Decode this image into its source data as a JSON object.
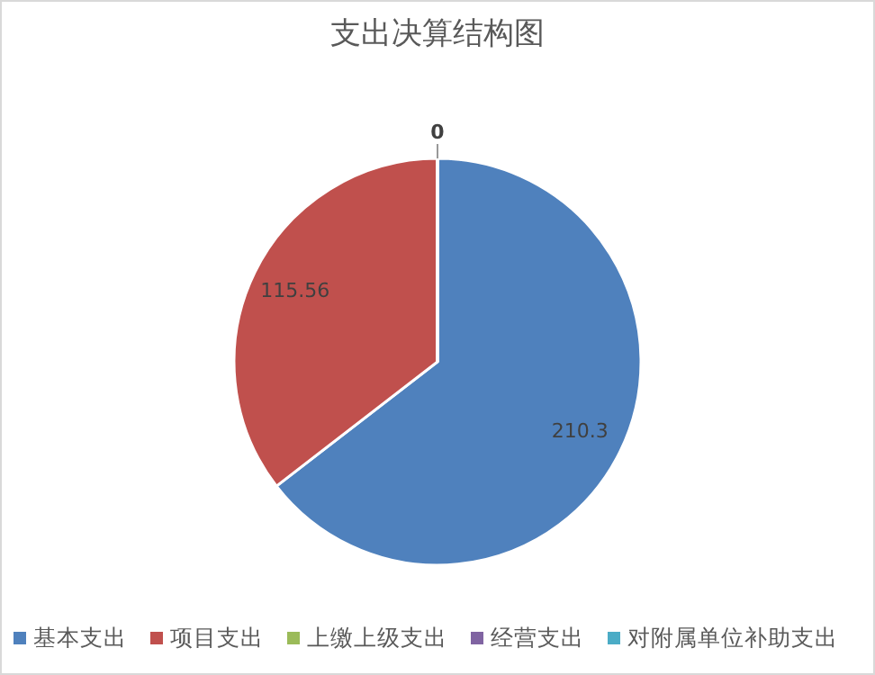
{
  "chart_data": {
    "type": "pie",
    "title": "支出决算结构图",
    "categories": [
      "基本支出",
      "项目支出",
      "上缴上级支出",
      "经营支出",
      "对附属单位补助支出"
    ],
    "values": [
      210.3,
      115.56,
      0,
      0,
      0
    ],
    "colors": [
      "#4f81bd",
      "#c0504d",
      "#9bbb59",
      "#8064a2",
      "#4bacc6"
    ],
    "value_labels": [
      "210.3",
      "115.56",
      "0",
      null,
      null
    ],
    "legend": "bottom"
  }
}
